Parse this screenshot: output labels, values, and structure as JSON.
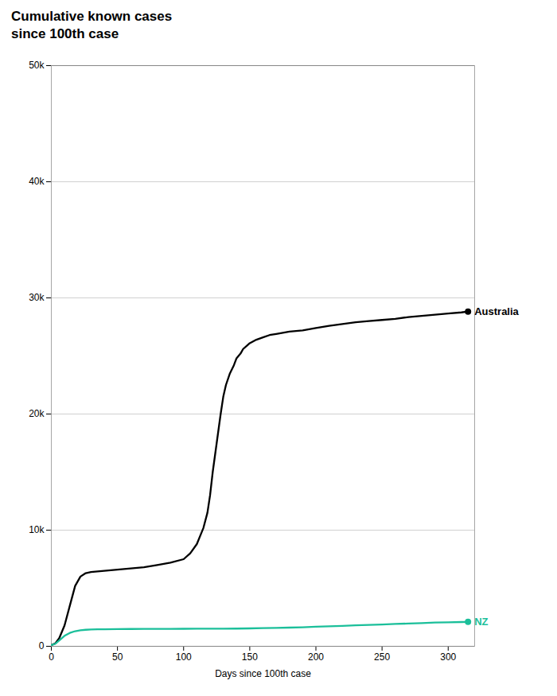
{
  "chart_data": {
    "type": "line",
    "title": "Cumulative known cases",
    "subtitle": "since 100th case",
    "xlabel": "Days since 100th case",
    "xlim": [
      0,
      320
    ],
    "ylim": [
      0,
      50000
    ],
    "xticks": [
      0,
      50,
      100,
      150,
      200,
      250,
      300
    ],
    "yticks": [
      0,
      {
        "value": 10000,
        "label": "10k"
      },
      {
        "value": 20000,
        "label": "20k"
      },
      {
        "value": 30000,
        "label": "30k"
      },
      {
        "value": 40000,
        "label": "40k"
      },
      {
        "value": 50000,
        "label": "50k"
      }
    ],
    "grid": "y",
    "series": [
      {
        "name": "Australia",
        "color": "#000000",
        "x": [
          0,
          3,
          6,
          10,
          14,
          18,
          22,
          26,
          30,
          35,
          40,
          50,
          60,
          70,
          80,
          90,
          100,
          105,
          110,
          115,
          118,
          120,
          122,
          125,
          128,
          130,
          132,
          135,
          138,
          140,
          143,
          145,
          148,
          150,
          155,
          160,
          165,
          170,
          175,
          180,
          185,
          190,
          195,
          200,
          210,
          220,
          230,
          240,
          250,
          260,
          270,
          280,
          290,
          300,
          310,
          315
        ],
        "values": [
          100,
          250,
          700,
          1800,
          3500,
          5200,
          6000,
          6300,
          6400,
          6450,
          6500,
          6600,
          6700,
          6800,
          7000,
          7200,
          7500,
          8000,
          8800,
          10200,
          11500,
          13000,
          15000,
          17500,
          20000,
          21500,
          22500,
          23500,
          24200,
          24800,
          25200,
          25600,
          25900,
          26100,
          26400,
          26600,
          26800,
          26900,
          27000,
          27100,
          27150,
          27200,
          27300,
          27400,
          27600,
          27750,
          27900,
          28000,
          28100,
          28200,
          28350,
          28450,
          28550,
          28650,
          28750,
          28820
        ]
      },
      {
        "name": "NZ",
        "color": "#1bbf9a",
        "x": [
          0,
          3,
          6,
          10,
          14,
          18,
          22,
          26,
          30,
          35,
          40,
          50,
          60,
          70,
          80,
          90,
          100,
          110,
          120,
          130,
          140,
          150,
          160,
          170,
          180,
          190,
          200,
          210,
          220,
          230,
          240,
          250,
          260,
          270,
          280,
          290,
          300,
          310,
          315
        ],
        "values": [
          100,
          220,
          500,
          900,
          1150,
          1300,
          1380,
          1420,
          1450,
          1460,
          1470,
          1480,
          1490,
          1495,
          1500,
          1505,
          1508,
          1510,
          1512,
          1515,
          1525,
          1540,
          1560,
          1580,
          1610,
          1640,
          1680,
          1720,
          1760,
          1800,
          1840,
          1880,
          1920,
          1960,
          2000,
          2040,
          2070,
          2090,
          2100
        ]
      }
    ]
  }
}
